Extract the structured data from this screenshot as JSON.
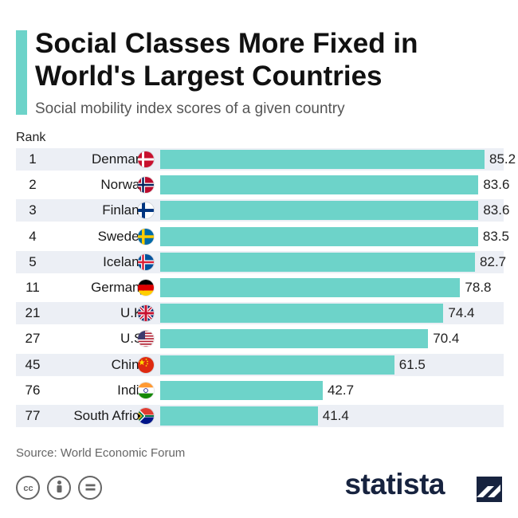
{
  "title": "Social Classes More Fixed in World's Largest Countries",
  "subtitle": "Social mobility index scores of a given country",
  "rank_header": "Rank",
  "source": "Source: World Economic Forum",
  "brand": "statista",
  "colors": {
    "bar": "#6dd3c9",
    "accent": "#6dd3c9",
    "row_shade": "#eceff5",
    "brand": "#17233f"
  },
  "icons": [
    "cc-icon",
    "by-icon",
    "nd-icon",
    "statista-logo-icon"
  ],
  "chart_data": {
    "type": "bar",
    "orientation": "horizontal",
    "title": "Social Classes More Fixed in World's Largest Countries",
    "subtitle": "Social mobility index scores of a given country",
    "xlim": [
      0,
      85.2
    ],
    "categories": [
      "Denmark",
      "Norway",
      "Finland",
      "Sweden",
      "Iceland",
      "Germany",
      "U.K.",
      "U.S.",
      "China",
      "India",
      "South Africa"
    ],
    "ranks": [
      "1",
      "2",
      "3",
      "4",
      "5",
      "11",
      "21",
      "27",
      "45",
      "76",
      "77"
    ],
    "values": [
      85.2,
      83.6,
      83.6,
      83.5,
      82.7,
      78.8,
      74.4,
      70.4,
      61.5,
      42.7,
      41.4
    ],
    "flags": [
      "denmark-flag-icon",
      "norway-flag-icon",
      "finland-flag-icon",
      "sweden-flag-icon",
      "iceland-flag-icon",
      "germany-flag-icon",
      "uk-flag-icon",
      "us-flag-icon",
      "china-flag-icon",
      "india-flag-icon",
      "south-africa-flag-icon"
    ]
  }
}
